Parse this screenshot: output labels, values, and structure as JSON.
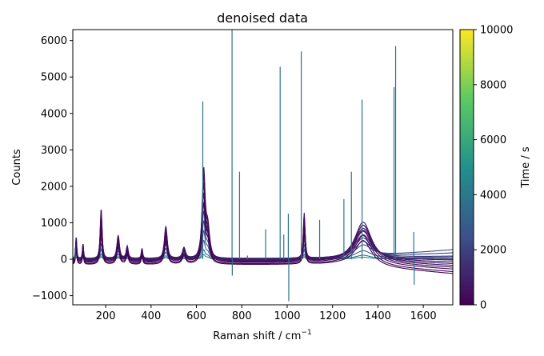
{
  "chart_data": {
    "type": "line",
    "title": "denoised data",
    "xlabel_main": "Raman shift / cm",
    "xlabel_sup": "−1",
    "ylabel": "Counts",
    "xlim": [
      55,
      1730
    ],
    "ylim": [
      -1250,
      6300
    ],
    "x_ticks": [
      200,
      400,
      600,
      800,
      1000,
      1200,
      1400,
      1600
    ],
    "x_tick_labels": [
      "200",
      "400",
      "600",
      "800",
      "1000",
      "1200",
      "1400",
      "1600"
    ],
    "y_ticks": [
      -1000,
      0,
      1000,
      2000,
      3000,
      4000,
      5000,
      6000
    ],
    "y_tick_labels": [
      "−1000",
      "0",
      "1000",
      "2000",
      "3000",
      "4000",
      "5000",
      "6000"
    ],
    "grid": false,
    "colorbar": {
      "label": "Time / s",
      "range": [
        0,
        10000
      ],
      "ticks": [
        0,
        2000,
        4000,
        6000,
        8000,
        10000
      ],
      "tick_labels": [
        "0",
        "2000",
        "4000",
        "6000",
        "8000",
        "10000"
      ],
      "colormap": "viridis",
      "stops": [
        "#440154",
        "#3b528b",
        "#21918c",
        "#5ec962",
        "#fde725"
      ]
    },
    "peaks": [
      {
        "center": 70,
        "width": 3,
        "height": 700
      },
      {
        "center": 100,
        "width": 3,
        "height": 500
      },
      {
        "center": 180,
        "width": 5,
        "height": 1450
      },
      {
        "center": 255,
        "width": 7,
        "height": 700
      },
      {
        "center": 295,
        "width": 6,
        "height": 400
      },
      {
        "center": 360,
        "width": 4,
        "height": 350
      },
      {
        "center": 465,
        "width": 8,
        "height": 950
      },
      {
        "center": 545,
        "width": 9,
        "height": 350
      },
      {
        "center": 632,
        "width": 8,
        "height": 2400
      },
      {
        "center": 650,
        "width": 10,
        "height": 800
      },
      {
        "center": 1075,
        "width": 5,
        "height": 1300
      },
      {
        "center": 1335,
        "width": 45,
        "height": 1100
      }
    ],
    "spikes": [
      {
        "x": 65,
        "y": 300
      },
      {
        "x": 628,
        "y": 4330
      },
      {
        "x": 757,
        "y": 6300
      },
      {
        "x": 758,
        "y": -450
      },
      {
        "x": 790,
        "y": 2400
      },
      {
        "x": 825,
        "y": 100
      },
      {
        "x": 905,
        "y": 820
      },
      {
        "x": 969,
        "y": 5280
      },
      {
        "x": 985,
        "y": 680
      },
      {
        "x": 1005,
        "y": 1250
      },
      {
        "x": 1007,
        "y": -1150
      },
      {
        "x": 1062,
        "y": 5700
      },
      {
        "x": 1143,
        "y": 1080
      },
      {
        "x": 1250,
        "y": 1650
      },
      {
        "x": 1283,
        "y": 2400
      },
      {
        "x": 1330,
        "y": 4380
      },
      {
        "x": 1471,
        "y": 4720
      },
      {
        "x": 1478,
        "y": 5850
      },
      {
        "x": 1558,
        "y": 750
      },
      {
        "x": 1560,
        "y": -700
      }
    ],
    "series": [
      {
        "time": 0,
        "scale": 0.65,
        "shift": -150,
        "tilt": -250
      },
      {
        "time": 150,
        "scale": 0.75,
        "shift": -130,
        "tilt": -220
      },
      {
        "time": 300,
        "scale": 0.85,
        "shift": -100,
        "tilt": -180
      },
      {
        "time": 450,
        "scale": 0.95,
        "shift": -80,
        "tilt": -150
      },
      {
        "time": 600,
        "scale": 1.0,
        "shift": -60,
        "tilt": -120
      },
      {
        "time": 750,
        "scale": 0.9,
        "shift": -40,
        "tilt": -90
      },
      {
        "time": 900,
        "scale": 0.8,
        "shift": -20,
        "tilt": -60
      },
      {
        "time": 1050,
        "scale": 0.7,
        "shift": 0,
        "tilt": -30
      },
      {
        "time": 1300,
        "scale": 0.6,
        "shift": 10,
        "tilt": 0
      },
      {
        "time": 1600,
        "scale": 0.5,
        "shift": 20,
        "tilt": 60
      },
      {
        "time": 2000,
        "scale": 0.4,
        "shift": 20,
        "tilt": 150
      },
      {
        "time": 2500,
        "scale": 0.3,
        "shift": 10,
        "tilt": 250
      },
      {
        "time": 3200,
        "scale": 0.2,
        "shift": 0,
        "tilt": 60
      },
      {
        "time": 4000,
        "scale": 0.1,
        "shift": 0,
        "tilt": 0
      },
      {
        "time": 5000,
        "scale": 0.05,
        "shift": 0,
        "tilt": 0
      }
    ]
  }
}
